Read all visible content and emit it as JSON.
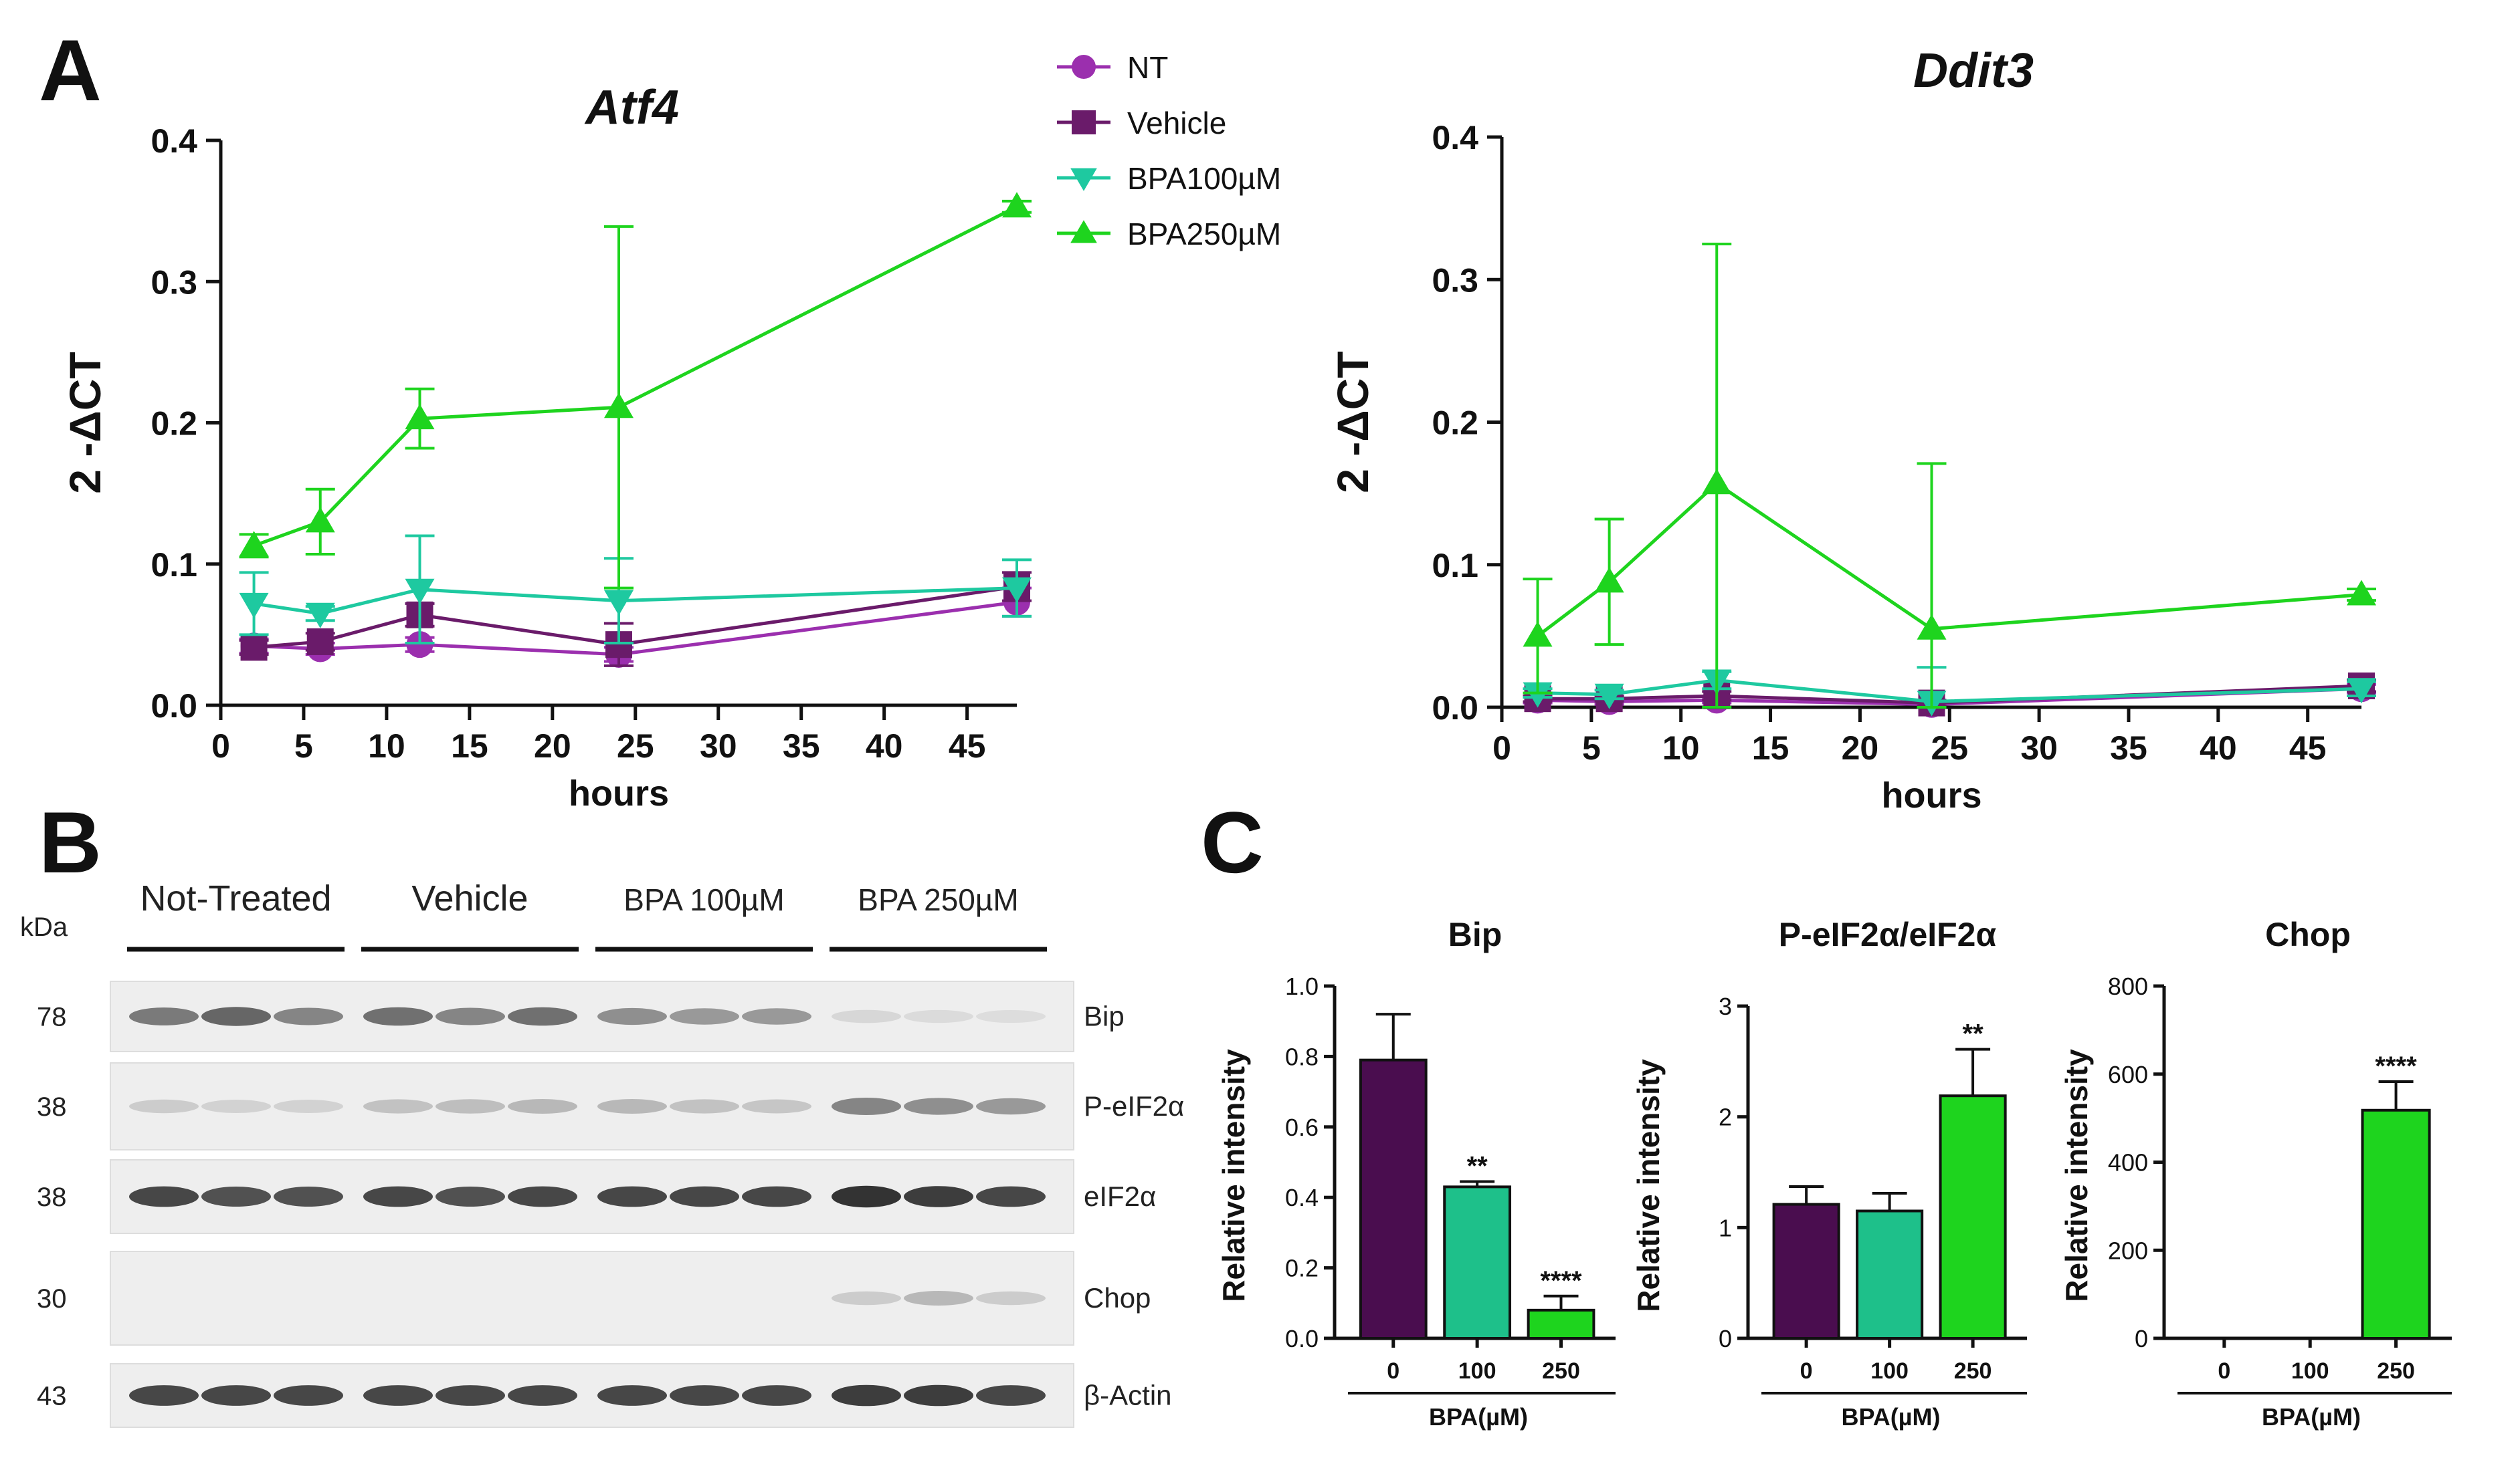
{
  "panels": {
    "a": "A",
    "b": "B",
    "c": "C"
  },
  "legend": [
    {
      "name": "NT",
      "color": "#9b2fae",
      "marker": "circle"
    },
    {
      "name": "Vehicle",
      "color": "#6a1b6a",
      "marker": "square"
    },
    {
      "name": "BPA100µM",
      "color": "#1ec9a0",
      "marker": "triangle-down"
    },
    {
      "name": "BPA250µM",
      "color": "#1ed41e",
      "marker": "triangle-up"
    }
  ],
  "chart_data": [
    {
      "type": "line",
      "title": "Atf4",
      "xlabel": "hours",
      "ylabel": "2 -ΔCT",
      "xlim": [
        0,
        48
      ],
      "ylim": [
        0,
        0.4
      ],
      "xticks": [
        "0",
        "5",
        "10",
        "15",
        "20",
        "25",
        "30",
        "35",
        "40",
        "45"
      ],
      "yticks": [
        "0.0",
        "0.1",
        "0.2",
        "0.3",
        "0.4"
      ],
      "x": [
        2,
        6,
        12,
        24,
        48
      ],
      "series": [
        {
          "name": "NT",
          "values": [
            0.042,
            0.04,
            0.043,
            0.036,
            0.073
          ],
          "err": [
            0.005,
            0.004,
            0.005,
            0.005,
            0.01
          ]
        },
        {
          "name": "Vehicle",
          "values": [
            0.041,
            0.045,
            0.064,
            0.043,
            0.084
          ],
          "err": [
            0.005,
            0.006,
            0.008,
            0.015,
            0.01
          ]
        },
        {
          "name": "BPA100µM",
          "values": [
            0.072,
            0.065,
            0.082,
            0.074,
            0.083
          ],
          "err": [
            0.022,
            0.005,
            0.038,
            0.03,
            0.02
          ]
        },
        {
          "name": "BPA250µM",
          "values": [
            0.113,
            0.13,
            0.203,
            0.211,
            0.353
          ],
          "err": [
            0.008,
            0.023,
            0.021,
            0.128,
            0.004
          ]
        }
      ]
    },
    {
      "type": "line",
      "title": "Ddit3",
      "xlabel": "hours",
      "ylabel": "2 -ΔCT",
      "xlim": [
        0,
        48
      ],
      "ylim": [
        0,
        0.4
      ],
      "xticks": [
        "0",
        "5",
        "10",
        "15",
        "20",
        "25",
        "30",
        "35",
        "40",
        "45"
      ],
      "yticks": [
        "0.0",
        "0.1",
        "0.2",
        "0.3",
        "0.4"
      ],
      "x": [
        2,
        6,
        12,
        24,
        48
      ],
      "series": [
        {
          "name": "NT",
          "values": [
            0.005,
            0.004,
            0.005,
            0.002,
            0.013
          ],
          "err": [
            0.002,
            0.002,
            0.002,
            0.002,
            0.003
          ]
        },
        {
          "name": "Vehicle",
          "values": [
            0.006,
            0.006,
            0.008,
            0.003,
            0.015
          ],
          "err": [
            0.002,
            0.002,
            0.003,
            0.002,
            0.004
          ]
        },
        {
          "name": "BPA100µM",
          "values": [
            0.01,
            0.009,
            0.019,
            0.004,
            0.013
          ],
          "err": [
            0.003,
            0.003,
            0.006,
            0.024,
            0.005
          ]
        },
        {
          "name": "BPA250µM",
          "values": [
            0.05,
            0.088,
            0.157,
            0.055,
            0.079
          ],
          "err": [
            0.04,
            0.044,
            0.168,
            0.116,
            0.004
          ]
        }
      ]
    },
    {
      "type": "bar",
      "title": "Bip",
      "ylabel": "Relative intensity",
      "xlabel": "BPA(µM)",
      "categories": [
        "0",
        "100",
        "250"
      ],
      "values": [
        0.79,
        0.43,
        0.08
      ],
      "err": [
        0.13,
        0.015,
        0.04
      ],
      "sig": [
        "",
        "**",
        "****"
      ],
      "colors": [
        "#4a0d4f",
        "#1ec08a",
        "#1ed41e"
      ],
      "ylim": [
        0,
        1.0
      ],
      "yticks": [
        "0.0",
        "0.2",
        "0.4",
        "0.6",
        "0.8",
        "1.0"
      ]
    },
    {
      "type": "bar",
      "title": "P-eIF2α/eIF2α",
      "ylabel": "Relative intensity",
      "xlabel": "BPA(µM)",
      "categories": [
        "0",
        "100",
        "250"
      ],
      "values": [
        1.21,
        1.15,
        2.19
      ],
      "err": [
        0.16,
        0.16,
        0.42
      ],
      "sig": [
        "",
        "",
        "**"
      ],
      "colors": [
        "#4a0d4f",
        "#1ec08a",
        "#1ed41e"
      ],
      "ylim": [
        0,
        3
      ],
      "yticks": [
        "0",
        "1",
        "2",
        "3"
      ]
    },
    {
      "type": "bar",
      "title": "Chop",
      "ylabel": "Relative intensity",
      "xlabel": "BPA(µM)",
      "categories": [
        "0",
        "100",
        "250"
      ],
      "values": [
        0,
        0,
        518
      ],
      "err": [
        0,
        0,
        65
      ],
      "sig": [
        "",
        "",
        "****"
      ],
      "colors": [
        "#4a0d4f",
        "#1ec08a",
        "#1ed41e"
      ],
      "ylim": [
        0,
        800
      ],
      "yticks": [
        "0",
        "200",
        "400",
        "600",
        "800"
      ]
    }
  ],
  "western_blot": {
    "kda_header": "kDa",
    "groups": [
      "Not-Treated",
      "Vehicle",
      "BPA 100µM",
      "BPA 250µM"
    ],
    "rows": [
      {
        "kda": "78",
        "label": "Bip",
        "intensity": [
          0.55,
          0.65,
          0.5,
          0.6,
          0.5,
          0.6,
          0.45,
          0.4,
          0.4,
          0.1,
          0.08,
          0.07
        ]
      },
      {
        "kda": "38",
        "label": "P-eIF2α",
        "intensity": [
          0.15,
          0.12,
          0.12,
          0.2,
          0.22,
          0.25,
          0.25,
          0.2,
          0.18,
          0.5,
          0.45,
          0.4
        ]
      },
      {
        "kda": "38",
        "label": "eIF2α",
        "intensity": [
          0.8,
          0.75,
          0.75,
          0.8,
          0.75,
          0.8,
          0.8,
          0.8,
          0.8,
          0.9,
          0.85,
          0.8
        ]
      },
      {
        "kda": "30",
        "label": "Chop",
        "intensity": [
          0,
          0,
          0,
          0,
          0,
          0,
          0,
          0,
          0,
          0.15,
          0.25,
          0.15
        ]
      },
      {
        "kda": "43",
        "label": "β-Actin",
        "intensity": [
          0.8,
          0.8,
          0.8,
          0.8,
          0.8,
          0.8,
          0.8,
          0.8,
          0.8,
          0.85,
          0.85,
          0.8
        ]
      }
    ]
  }
}
